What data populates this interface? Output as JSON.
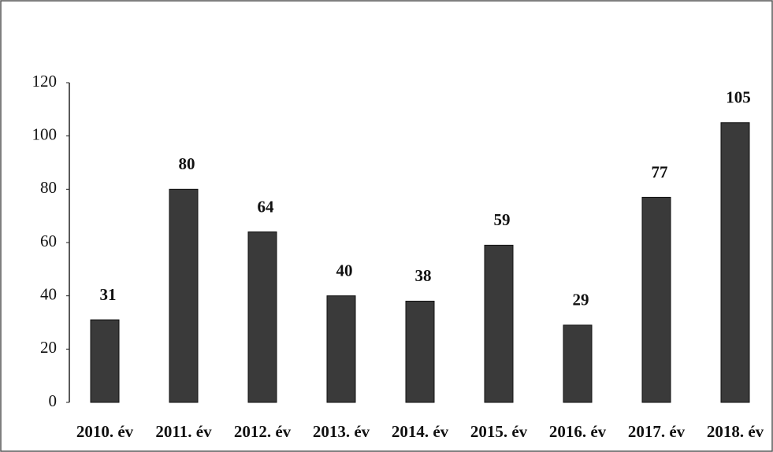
{
  "chart_data": {
    "type": "bar",
    "categories": [
      "2010. év",
      "2011. év",
      "2012. év",
      "2013. év",
      "2014. év",
      "2015. év",
      "2016. év",
      "2017. év",
      "2018. év"
    ],
    "values": [
      31,
      80,
      64,
      40,
      38,
      59,
      29,
      77,
      105
    ],
    "color": "#3a3a3a",
    "ylim": [
      0,
      120
    ],
    "yticks": [
      0,
      20,
      40,
      60,
      80,
      100,
      120
    ],
    "grid": false
  }
}
